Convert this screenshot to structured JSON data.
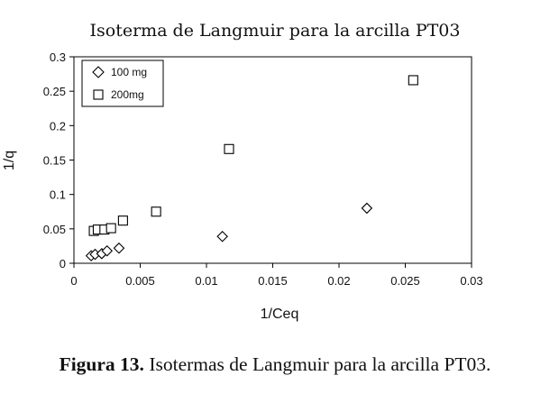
{
  "caption": {
    "label": "Figura 13.",
    "text": " Isotermas de Langmuir para la arcilla PT03."
  },
  "chart_data": {
    "type": "scatter",
    "title": "Isoterma de Langmuir para la arcilla PT03",
    "xlabel": "1/Ceq",
    "ylabel": "1/q",
    "xlim": [
      0,
      0.03
    ],
    "ylim": [
      0,
      0.3
    ],
    "x_ticks": [
      "0",
      "0.005",
      "0.01",
      "0.015",
      "0.02",
      "0.025",
      "0.03"
    ],
    "y_ticks": [
      "0",
      "0.05",
      "0.1",
      "0.15",
      "0.2",
      "0.25",
      "0.3"
    ],
    "grid": false,
    "legend_position": "top-left",
    "series": [
      {
        "name": "100 mg",
        "marker": "diamond",
        "points": [
          {
            "x": 0.0013,
            "y": 0.011
          },
          {
            "x": 0.0016,
            "y": 0.013
          },
          {
            "x": 0.0021,
            "y": 0.014
          },
          {
            "x": 0.0025,
            "y": 0.018
          },
          {
            "x": 0.0034,
            "y": 0.022
          },
          {
            "x": 0.0112,
            "y": 0.039
          },
          {
            "x": 0.0221,
            "y": 0.08
          }
        ]
      },
      {
        "name": "200mg",
        "marker": "square",
        "points": [
          {
            "x": 0.0015,
            "y": 0.047
          },
          {
            "x": 0.0018,
            "y": 0.049
          },
          {
            "x": 0.0023,
            "y": 0.049
          },
          {
            "x": 0.0028,
            "y": 0.051
          },
          {
            "x": 0.0037,
            "y": 0.062
          },
          {
            "x": 0.0062,
            "y": 0.075
          },
          {
            "x": 0.0117,
            "y": 0.166
          },
          {
            "x": 0.0256,
            "y": 0.266
          }
        ]
      }
    ]
  }
}
